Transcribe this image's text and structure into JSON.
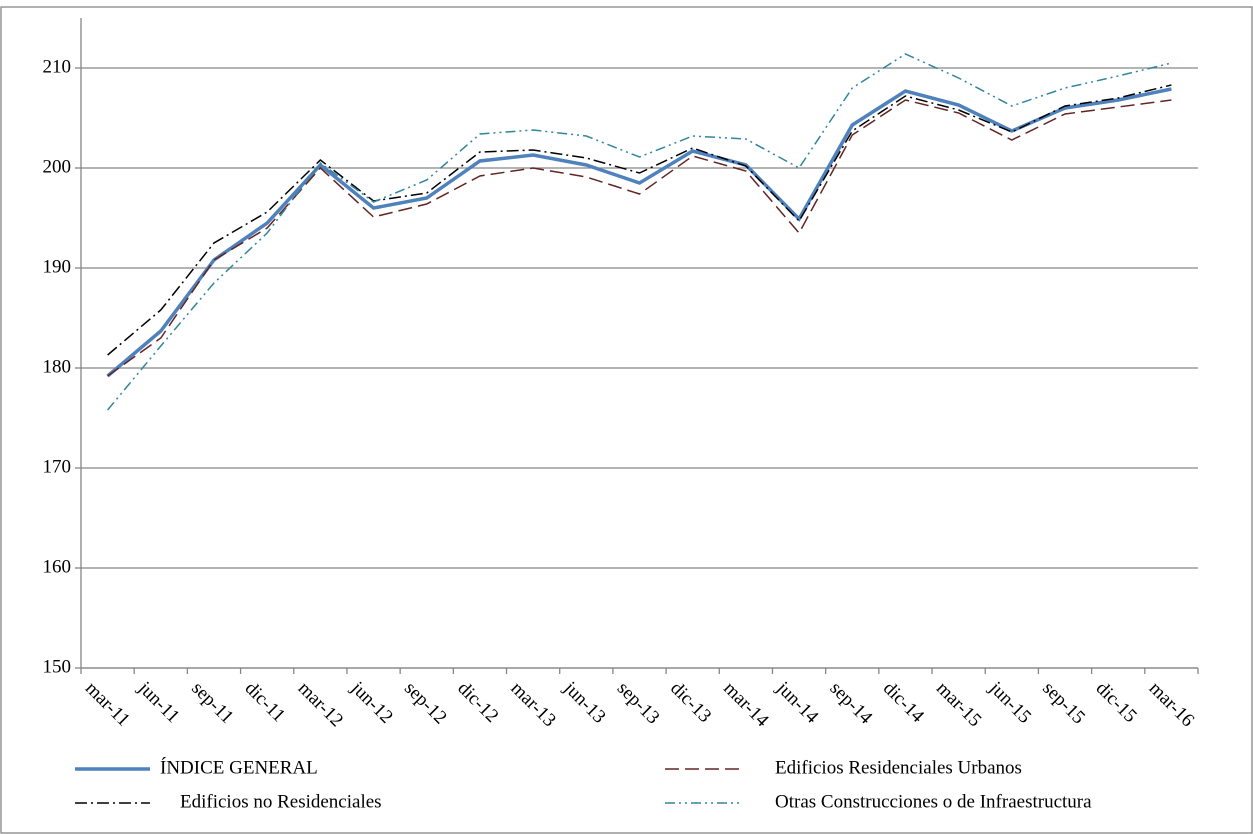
{
  "chart_data": {
    "type": "line",
    "categories": [
      "mar-11",
      "jun-11",
      "sep-11",
      "dic-11",
      "mar-12",
      "jun-12",
      "sep-12",
      "dic-12",
      "mar-13",
      "jun-13",
      "sep-13",
      "dic-13",
      "mar-14",
      "jun-14",
      "sep-14",
      "dic-14",
      "mar-15",
      "jun-15",
      "sep-15",
      "dic-15",
      "mar-16"
    ],
    "series": [
      {
        "name": "ÍNDICE GENERAL",
        "color": "#4f81bd",
        "values": [
          179.2,
          183.7,
          190.8,
          194.5,
          200.3,
          196.0,
          197.0,
          200.7,
          201.3,
          200.3,
          198.5,
          201.7,
          200.3,
          194.9,
          204.3,
          207.7,
          206.3,
          203.7,
          206.0,
          206.8,
          207.9
        ]
      },
      {
        "name": "Edificios Residenciales Urbanos",
        "color": "#632523",
        "values": [
          179.2,
          183.0,
          190.8,
          194.0,
          200.0,
          195.1,
          196.4,
          199.2,
          200.0,
          199.1,
          197.4,
          201.2,
          199.7,
          193.5,
          203.3,
          206.8,
          205.5,
          202.8,
          205.4,
          206.1,
          206.8
        ]
      },
      {
        "name": "Edificios no Residenciales",
        "color": "#000000",
        "values": [
          181.3,
          185.8,
          192.5,
          195.6,
          200.8,
          196.7,
          197.5,
          201.6,
          201.8,
          201.0,
          199.5,
          202.0,
          200.2,
          194.7,
          203.7,
          207.2,
          205.8,
          203.6,
          206.2,
          207.0,
          208.3
        ]
      },
      {
        "name": "Otras Construcciones o de Infraestructura",
        "color": "#31859c",
        "values": [
          175.8,
          182.2,
          188.5,
          193.5,
          200.5,
          196.6,
          198.8,
          203.4,
          203.8,
          203.2,
          201.1,
          203.2,
          202.9,
          200.0,
          208.0,
          211.4,
          209.0,
          206.2,
          208.0,
          209.2,
          210.5
        ]
      }
    ],
    "ylim": [
      150,
      215
    ],
    "yticks": [
      150,
      160,
      170,
      180,
      190,
      200,
      210
    ],
    "grid": true,
    "legend": "bottom"
  }
}
